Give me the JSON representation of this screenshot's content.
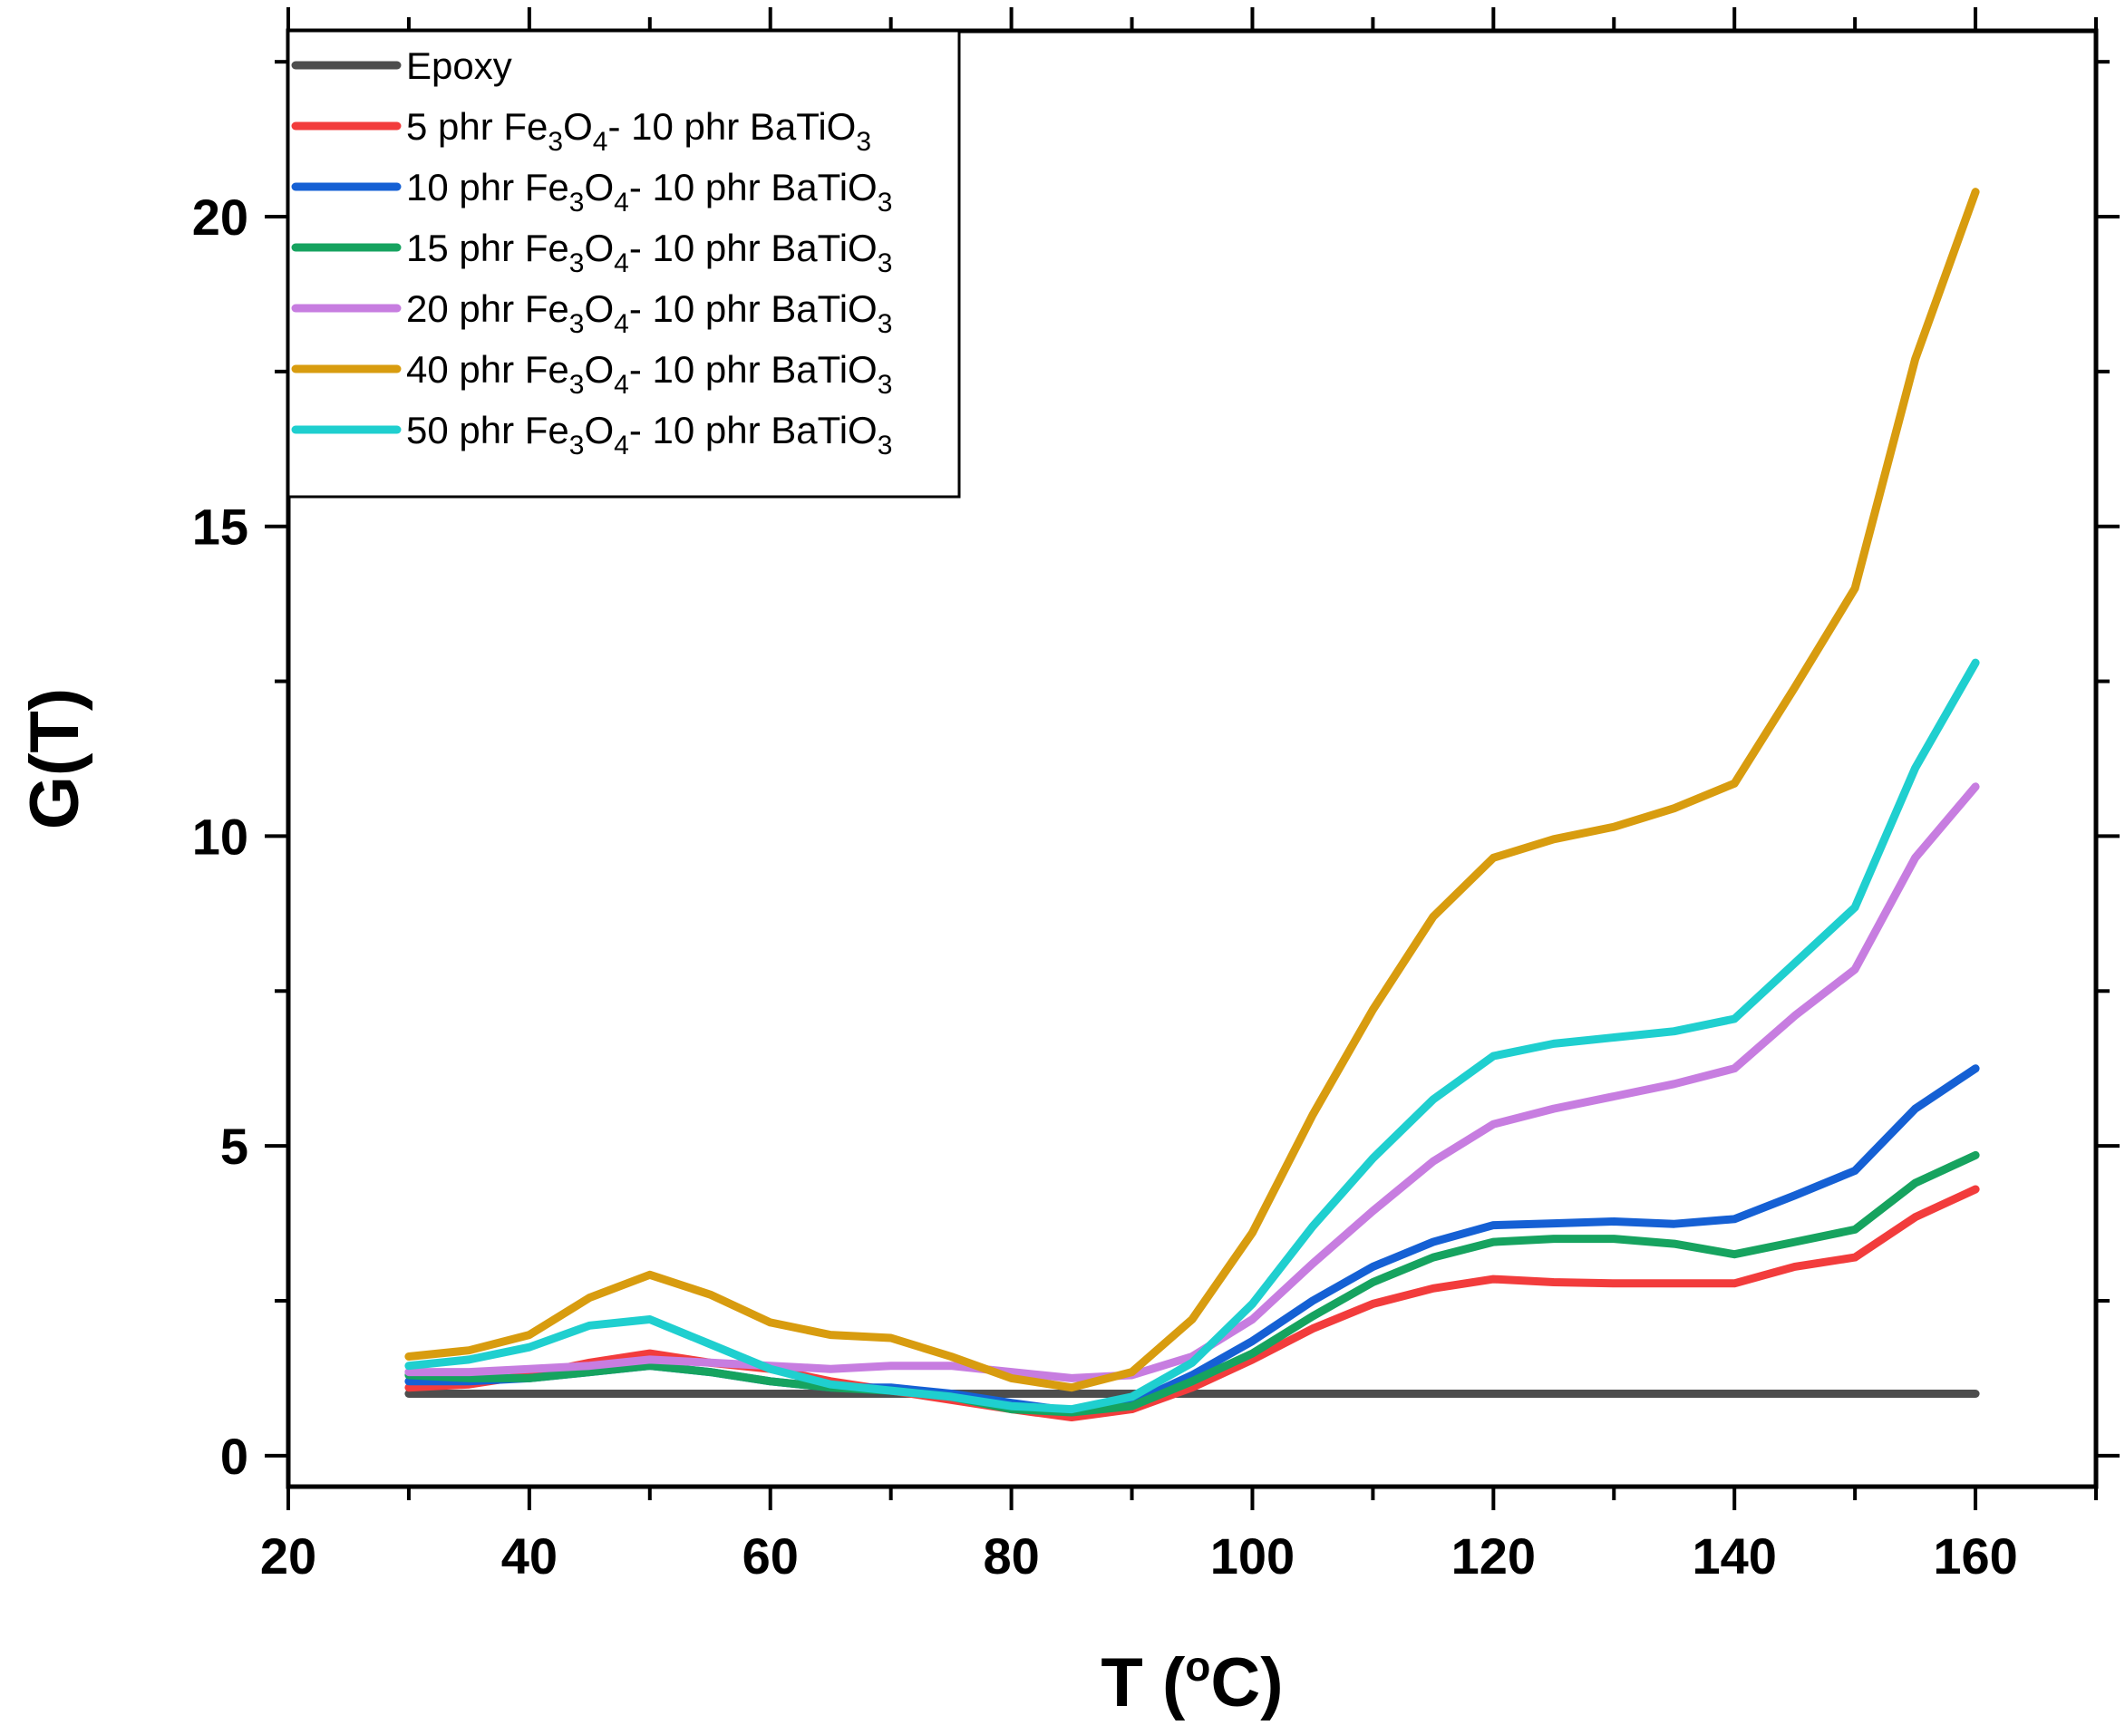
{
  "chart_data": {
    "type": "line",
    "title": "",
    "xlabel": "T (°C)",
    "xlabel_parts": {
      "main": "T (",
      "sup": "o",
      "end": "C)"
    },
    "ylabel": "G(T)",
    "xlim": [
      20,
      170
    ],
    "ylim": [
      -0.5,
      23
    ],
    "xticks": [
      20,
      40,
      60,
      80,
      100,
      120,
      140,
      160
    ],
    "yticks": [
      0,
      5,
      10,
      15,
      20
    ],
    "grid": false,
    "legend_position": "top-left",
    "x": [
      30,
      35,
      40,
      45,
      50,
      55,
      60,
      65,
      70,
      75,
      80,
      85,
      90,
      95,
      100,
      105,
      110,
      115,
      120,
      125,
      130,
      135,
      140,
      145,
      150,
      155,
      160
    ],
    "series": [
      {
        "name": "Epoxy",
        "label": [
          "Epoxy"
        ],
        "color": "#4d4d4d",
        "values": [
          1,
          1,
          1,
          1,
          1,
          1,
          1,
          1,
          1,
          1,
          1,
          1,
          1,
          1,
          1,
          1,
          1,
          1,
          1,
          1,
          1,
          1,
          1,
          1,
          1,
          1,
          1
        ]
      },
      {
        "name": "5 phr Fe3O4- 10 phr BaTiO3",
        "label": [
          " 5 phr Fe",
          "3",
          "O",
          "4",
          "- 10 phr BaTiO",
          "3"
        ],
        "color": "#f23c3c",
        "values": [
          1.1,
          1.15,
          1.3,
          1.5,
          1.65,
          1.5,
          1.4,
          1.2,
          1.05,
          0.9,
          0.75,
          0.62,
          0.75,
          1.1,
          1.55,
          2.05,
          2.45,
          2.7,
          2.85,
          2.8,
          2.78,
          2.78,
          2.78,
          3.05,
          3.2,
          3.85,
          4.3
        ]
      },
      {
        "name": "10 phr Fe3O4- 10 phr BaTiO3",
        "label": [
          "10 phr Fe",
          "3",
          "O",
          "4",
          "- 10 phr BaTiO",
          "3"
        ],
        "color": "#1560d4",
        "values": [
          1.2,
          1.2,
          1.25,
          1.35,
          1.45,
          1.35,
          1.2,
          1.1,
          1.1,
          1.0,
          0.85,
          0.72,
          0.85,
          1.3,
          1.85,
          2.5,
          3.05,
          3.45,
          3.72,
          3.75,
          3.78,
          3.74,
          3.82,
          4.2,
          4.6,
          5.6,
          6.25
        ]
      },
      {
        "name": "15 phr Fe3O4- 10 phr BaTiO3",
        "label": [
          "15 phr Fe",
          "3",
          "O",
          "4",
          "- 10 phr BaTiO",
          "3"
        ],
        "color": "#16a35f",
        "values": [
          1.3,
          1.25,
          1.25,
          1.35,
          1.45,
          1.35,
          1.2,
          1.1,
          1.05,
          0.95,
          0.75,
          0.7,
          0.8,
          1.2,
          1.65,
          2.25,
          2.8,
          3.2,
          3.45,
          3.5,
          3.5,
          3.42,
          3.25,
          3.45,
          3.65,
          4.4,
          4.85
        ]
      },
      {
        "name": "20 phr Fe3O4- 10 phr BaTiO3",
        "label": [
          "20 phr Fe",
          "3",
          "O",
          "4",
          "- 10 phr BaTiO",
          "3"
        ],
        "color": "#c77de0",
        "values": [
          1.35,
          1.35,
          1.4,
          1.45,
          1.55,
          1.5,
          1.45,
          1.4,
          1.45,
          1.45,
          1.35,
          1.25,
          1.3,
          1.6,
          2.2,
          3.1,
          3.95,
          4.75,
          5.35,
          5.6,
          5.8,
          6.0,
          6.25,
          7.1,
          7.85,
          9.65,
          10.8
        ]
      },
      {
        "name": "40 phr Fe3O4- 10 phr BaTiO3",
        "label": [
          "40 phr Fe",
          "3",
          "O",
          "4",
          "- 10 phr BaTiO",
          "3"
        ],
        "color": "#d89c0f",
        "values": [
          1.6,
          1.7,
          1.95,
          2.55,
          2.92,
          2.6,
          2.15,
          1.95,
          1.9,
          1.6,
          1.25,
          1.1,
          1.35,
          2.2,
          3.6,
          5.5,
          7.2,
          8.7,
          9.65,
          9.95,
          10.15,
          10.45,
          10.85,
          12.4,
          14.0,
          17.7,
          20.4
        ]
      },
      {
        "name": "50 phr Fe3O4- 10 phr BaTiO3",
        "label": [
          "50 phr Fe",
          "3",
          "O",
          "4",
          "- 10 phr BaTiO",
          "3"
        ],
        "color": "#1fcfcf",
        "values": [
          1.45,
          1.55,
          1.75,
          2.1,
          2.2,
          1.8,
          1.4,
          1.15,
          1.05,
          0.95,
          0.8,
          0.75,
          0.95,
          1.5,
          2.45,
          3.7,
          4.8,
          5.75,
          6.45,
          6.65,
          6.75,
          6.85,
          7.05,
          7.95,
          8.85,
          11.1,
          12.8
        ]
      }
    ]
  }
}
